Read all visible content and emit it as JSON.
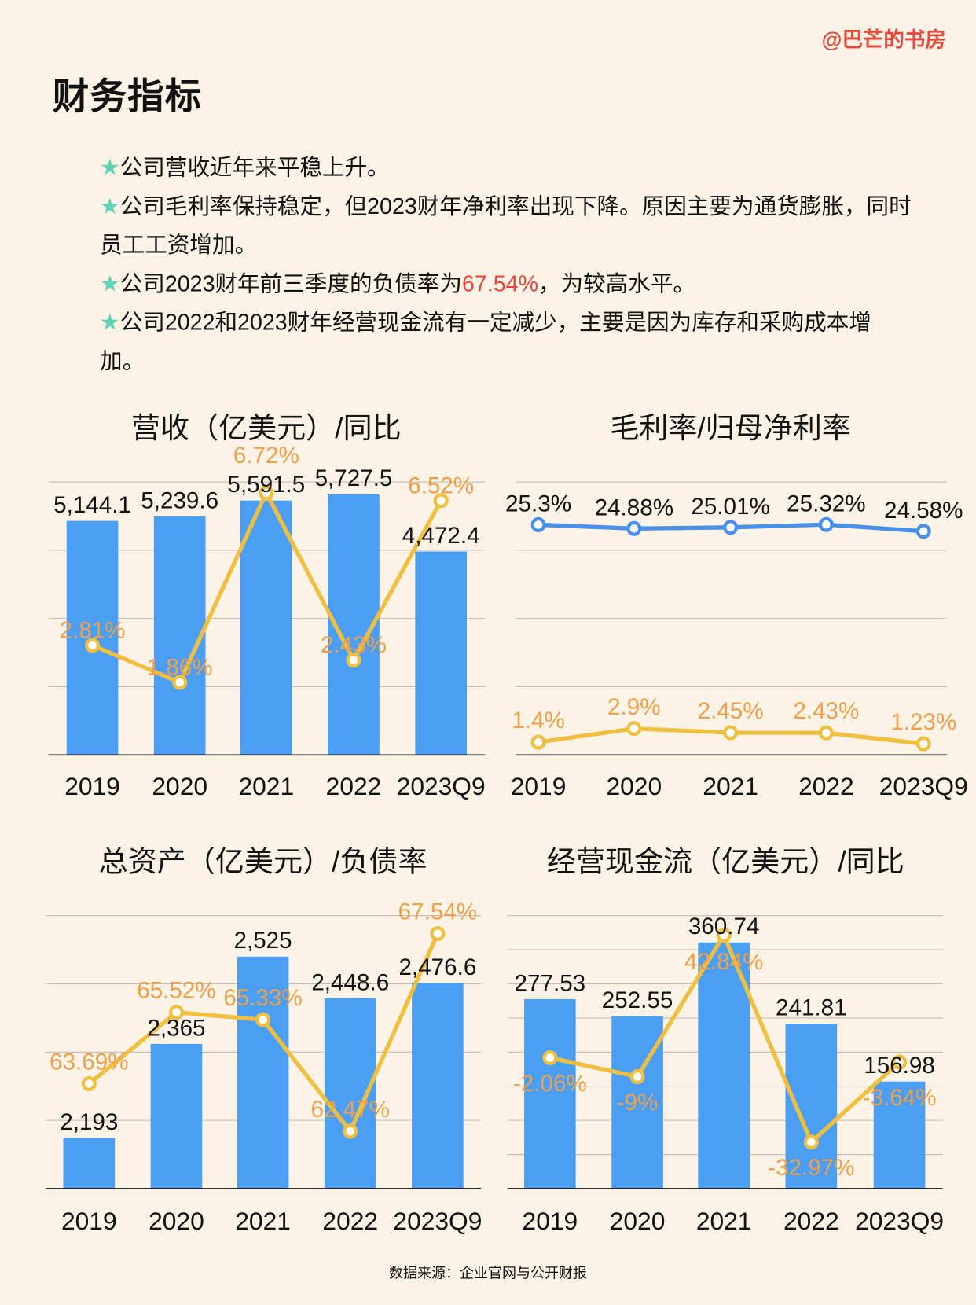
{
  "brand": "@巴芒的书房",
  "title": "财务指标",
  "bullets": [
    {
      "star": "★",
      "text": "公司营收近年来平稳上升。"
    },
    {
      "star": "★",
      "text": "公司毛利率保持稳定，但2023财年净利率出现下降。原因主要为通货膨胀，同时员工工资增加。"
    },
    {
      "star": "★",
      "text_before": "公司2023财年前三季度的负债率为",
      "highlight": "67.54%",
      "text_after": "，为较高水平。"
    },
    {
      "star": "★",
      "text": "公司2022和2023财年经营现金流有一定减少，主要是因为库存和采购成本增加。"
    }
  ],
  "colors": {
    "background": "#fcf3e7",
    "bar": "#4a9ff5",
    "line_yellow": "#f0bf40",
    "label_orange": "#f0a04a",
    "line_blue": "#4a90e8",
    "highlight": "#e8473a",
    "star": "#5fd3b6"
  },
  "source": "数据来源：企业官网与公开财报",
  "chart_data": [
    {
      "type": "bar+line",
      "title": "营收（亿美元）/同比",
      "categories": [
        "2019",
        "2020",
        "2021",
        "2022",
        "2023Q9"
      ],
      "bars": {
        "values": [
          5144.1,
          5239.6,
          5591.5,
          5727.5,
          4472.4
        ],
        "labels": [
          "5,144.1",
          "5,239.6",
          "5,591.5",
          "5,727.5",
          "4,472.4"
        ],
        "ylim": [
          0,
          6000
        ]
      },
      "lines": [
        {
          "values": [
            2.81,
            1.86,
            6.72,
            2.43,
            6.52
          ],
          "labels": [
            "2.81%",
            "1.86%",
            "6.72%",
            "2.43%",
            "6.52%"
          ],
          "ylim": [
            0,
            7
          ],
          "color": "#f0bf40",
          "label_color": "#f0a04a"
        }
      ],
      "grid": true
    },
    {
      "type": "line",
      "title": "毛利率/归母净利率",
      "categories": [
        "2019",
        "2020",
        "2021",
        "2022",
        "2023Q9"
      ],
      "lines": [
        {
          "values": [
            25.3,
            24.88,
            25.01,
            25.32,
            24.58
          ],
          "labels": [
            "25.3%",
            "24.88%",
            "25.01%",
            "25.32%",
            "24.58%"
          ],
          "ylim": [
            0,
            30
          ],
          "color": "#4a90e8",
          "label_color": "#111111"
        },
        {
          "values": [
            1.4,
            2.9,
            2.45,
            2.43,
            1.23
          ],
          "labels": [
            "1.4%",
            "2.9%",
            "2.45%",
            "2.43%",
            "1.23%"
          ],
          "ylim": [
            0,
            30
          ],
          "color": "#f0bf40",
          "label_color": "#f0a04a"
        }
      ],
      "grid": true
    },
    {
      "type": "bar+line",
      "title": "总资产（亿美元）/负债率",
      "categories": [
        "2019",
        "2020",
        "2021",
        "2022",
        "2023Q9"
      ],
      "bars": {
        "values": [
          2193,
          2365,
          2525,
          2448.6,
          2476.6
        ],
        "labels": [
          "2,193",
          "2,365",
          "2,525",
          "2,448.6",
          "2,476.6"
        ],
        "ylim": [
          2100,
          2600
        ]
      },
      "lines": [
        {
          "values": [
            63.69,
            65.52,
            65.33,
            62.47,
            67.54
          ],
          "labels": [
            "63.69%",
            "65.52%",
            "65.33%",
            "62.47%",
            "67.54%"
          ],
          "ylim": [
            61,
            68
          ],
          "color": "#f0bf40",
          "label_color": "#f0a04a"
        }
      ],
      "grid": true
    },
    {
      "type": "bar+line",
      "title": "经营现金流（亿美元）/同比",
      "categories": [
        "2019",
        "2020",
        "2021",
        "2022",
        "2023Q9"
      ],
      "bars": {
        "values": [
          277.53,
          252.55,
          360.74,
          241.81,
          156.98
        ],
        "labels": [
          "277.53",
          "252.55",
          "360.74",
          "241.81",
          "156.98"
        ],
        "ylim": [
          0,
          400
        ]
      },
      "lines": [
        {
          "values": [
            -2.06,
            -9,
            42.84,
            -32.97,
            -3.64
          ],
          "labels": [
            "-2.06%",
            "-9%",
            "42.84%",
            "-32.97%",
            "-3.64%"
          ],
          "ylim": [
            -50,
            50
          ],
          "color": "#f0bf40",
          "label_color": "#f0a04a"
        }
      ],
      "grid": true
    }
  ]
}
